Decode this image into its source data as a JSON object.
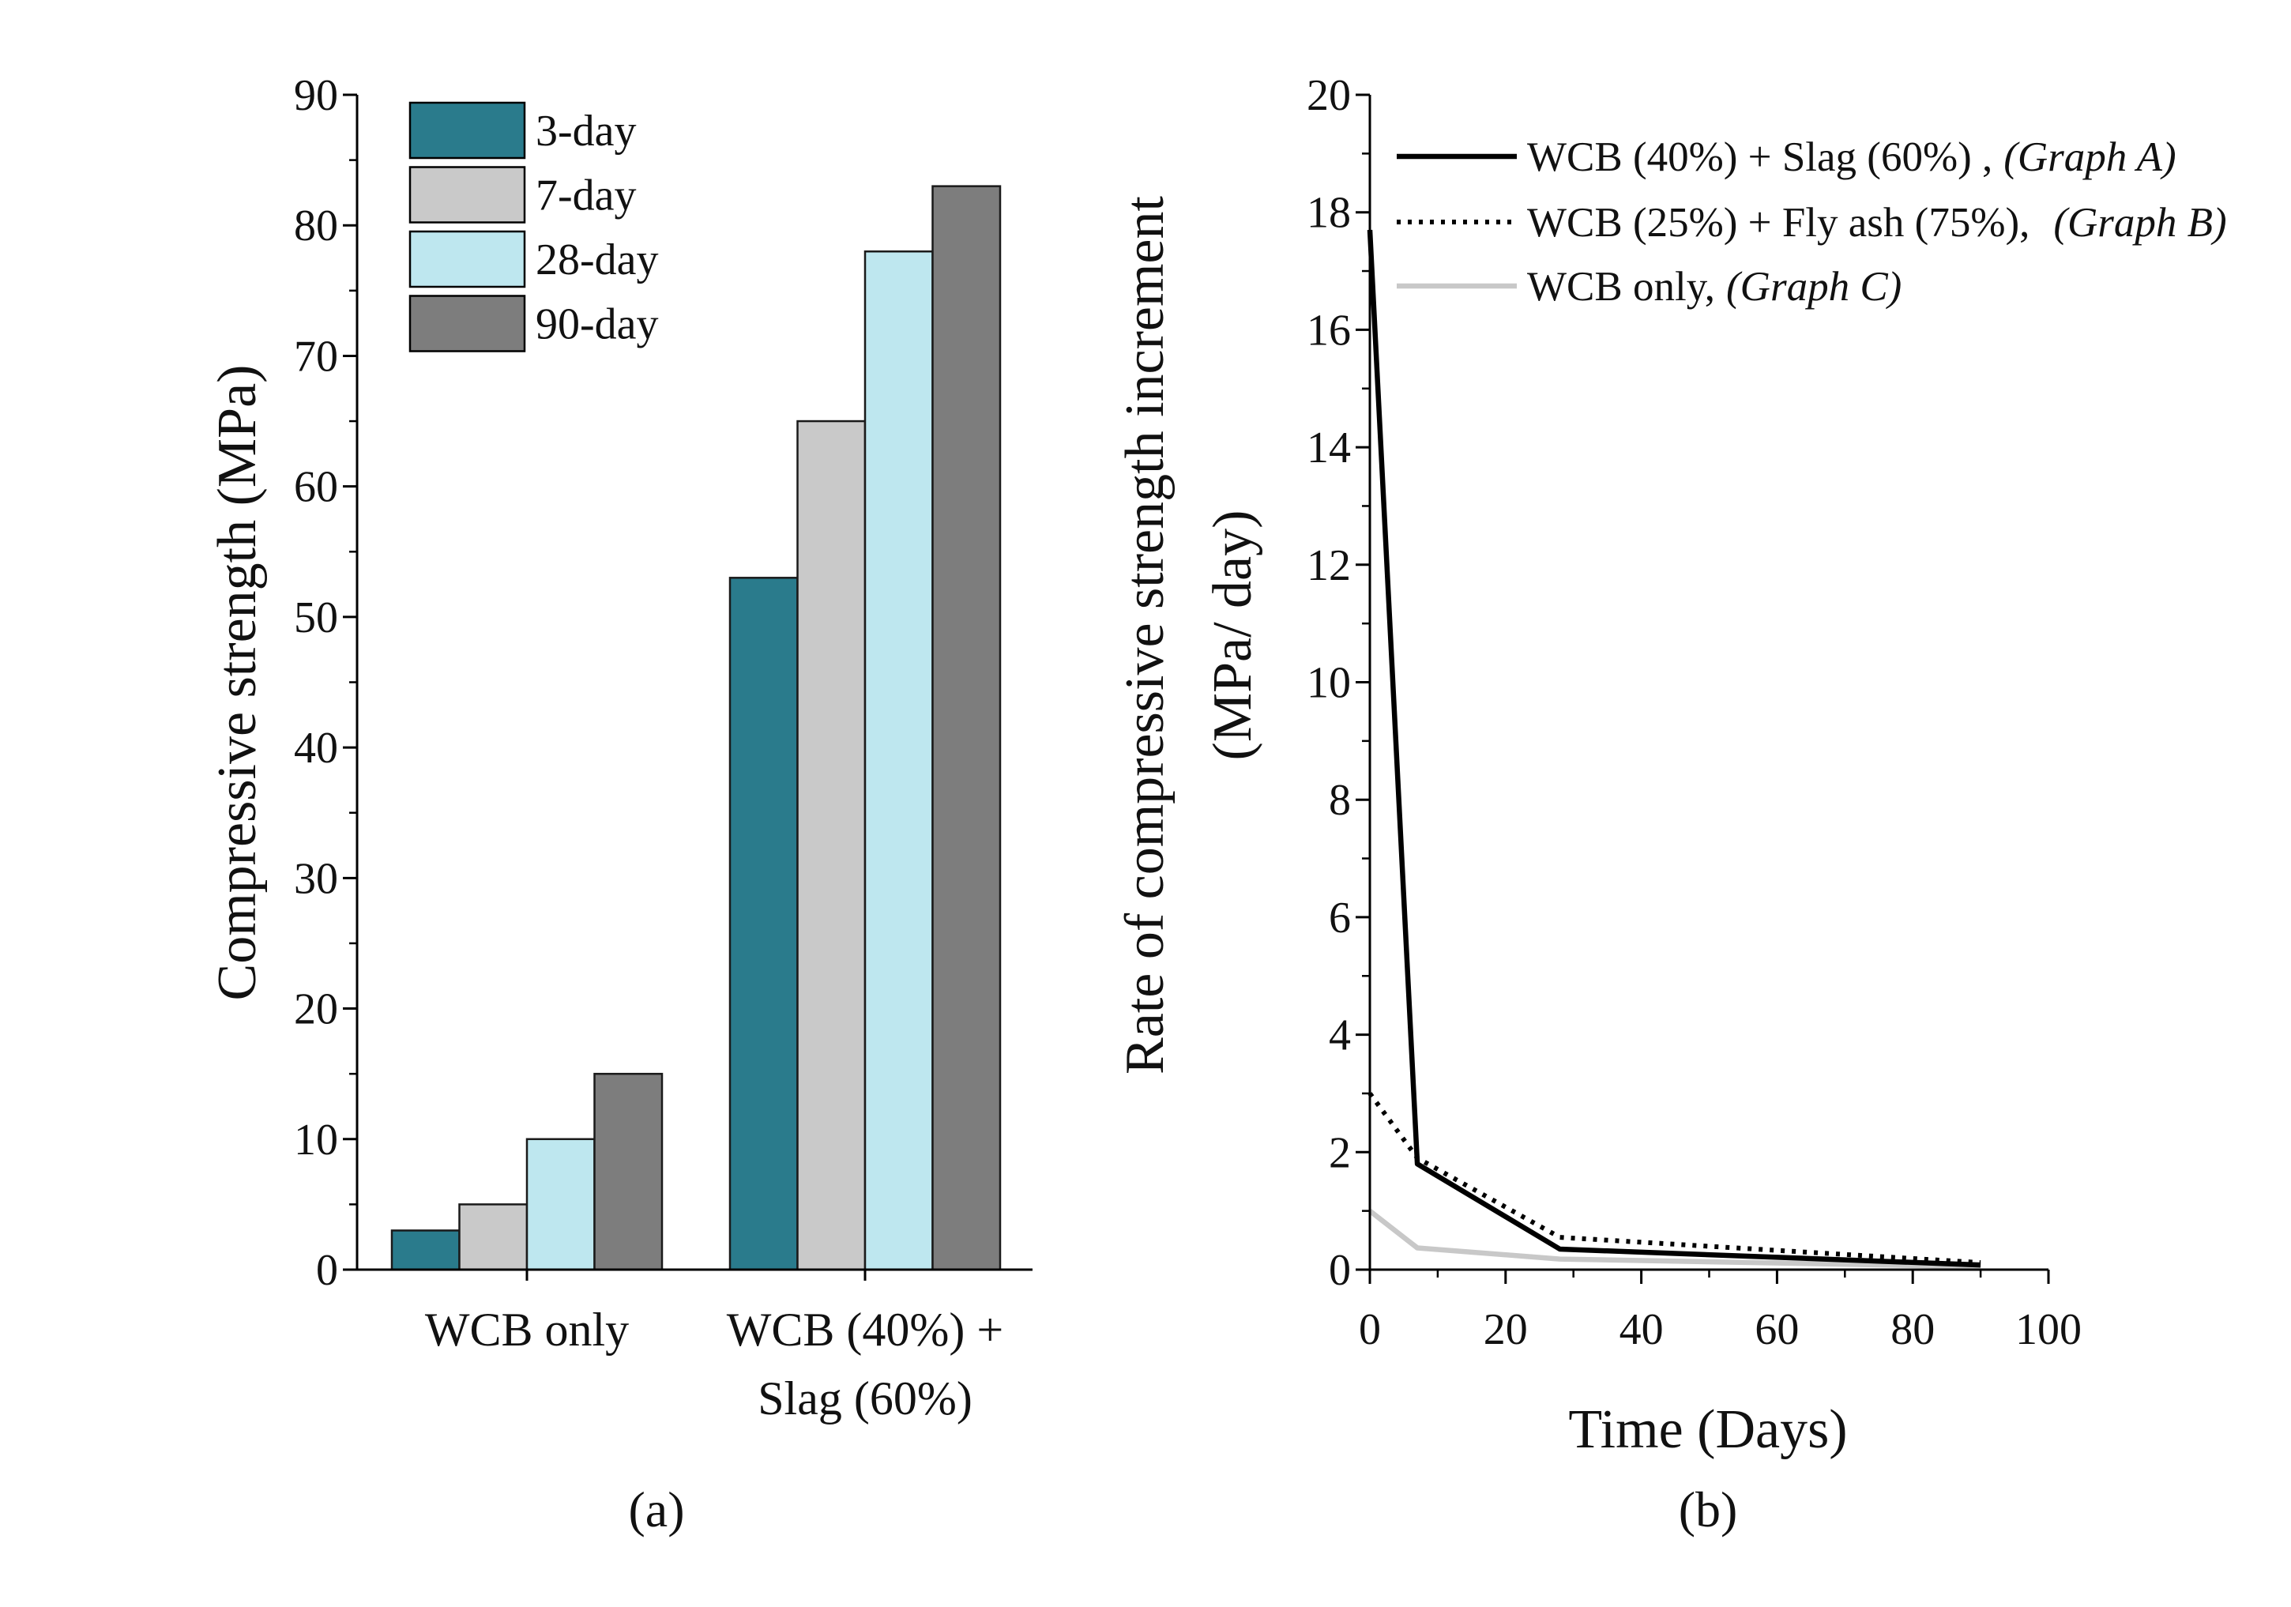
{
  "chart_data": [
    {
      "panel_label": "(a)",
      "type": "bar",
      "categories": [
        {
          "lines": [
            "WCB only"
          ]
        },
        {
          "lines": [
            "WCB (40%) +",
            "Slag (60%)"
          ]
        }
      ],
      "series": [
        {
          "name": "3-day",
          "values": [
            3,
            53
          ],
          "color": "#2a7b8c"
        },
        {
          "name": "7-day",
          "values": [
            5,
            65
          ],
          "color": "#c9c9c9"
        },
        {
          "name": "28-day",
          "values": [
            10,
            78
          ],
          "color": "#bee7ef"
        },
        {
          "name": "90-day",
          "values": [
            15,
            83
          ],
          "color": "#7d7d7d"
        }
      ],
      "xlabel": "",
      "ylabel": "Compressive strength (MPa)",
      "ylim": [
        0,
        90
      ],
      "yticks": [
        0,
        10,
        20,
        30,
        40,
        50,
        60,
        70,
        80,
        90
      ],
      "minor_ytick_step": 5,
      "legend": "top-left",
      "grid": false
    },
    {
      "panel_label": "(b)",
      "type": "line",
      "xlabel": "Time (Days)",
      "ylabel_lines": [
        "Rate of compressive strength increment",
        "(MPa/ day)"
      ],
      "xlim": [
        0,
        100
      ],
      "ylim": [
        0,
        20
      ],
      "xticks": [
        0,
        20,
        40,
        60,
        80,
        100
      ],
      "yticks": [
        0,
        2,
        4,
        6,
        8,
        10,
        12,
        14,
        16,
        18,
        20
      ],
      "minor_xtick_step": 10,
      "minor_ytick_step": 1,
      "series": [
        {
          "name": "WCB (40%) + Slag (60%) ,",
          "tag": "(Graph A)",
          "line_style": "solid",
          "color": "#000000",
          "x": [
            0,
            7,
            28,
            90
          ],
          "y": [
            17.7,
            1.8,
            0.35,
            0.08
          ]
        },
        {
          "name": "WCB (25%) + Fly ash (75%),",
          "tag": "(Graph B)",
          "line_style": "dotted",
          "color": "#000000",
          "x": [
            0,
            7,
            28,
            90
          ],
          "y": [
            3.0,
            1.9,
            0.55,
            0.12
          ]
        },
        {
          "name": "WCB only,",
          "tag": "(Graph C)",
          "line_style": "solid",
          "color": "#c8c8c8",
          "x": [
            0,
            7,
            28,
            90
          ],
          "y": [
            1.0,
            0.37,
            0.18,
            0.05
          ]
        }
      ],
      "legend": "top-right",
      "grid": false
    }
  ]
}
